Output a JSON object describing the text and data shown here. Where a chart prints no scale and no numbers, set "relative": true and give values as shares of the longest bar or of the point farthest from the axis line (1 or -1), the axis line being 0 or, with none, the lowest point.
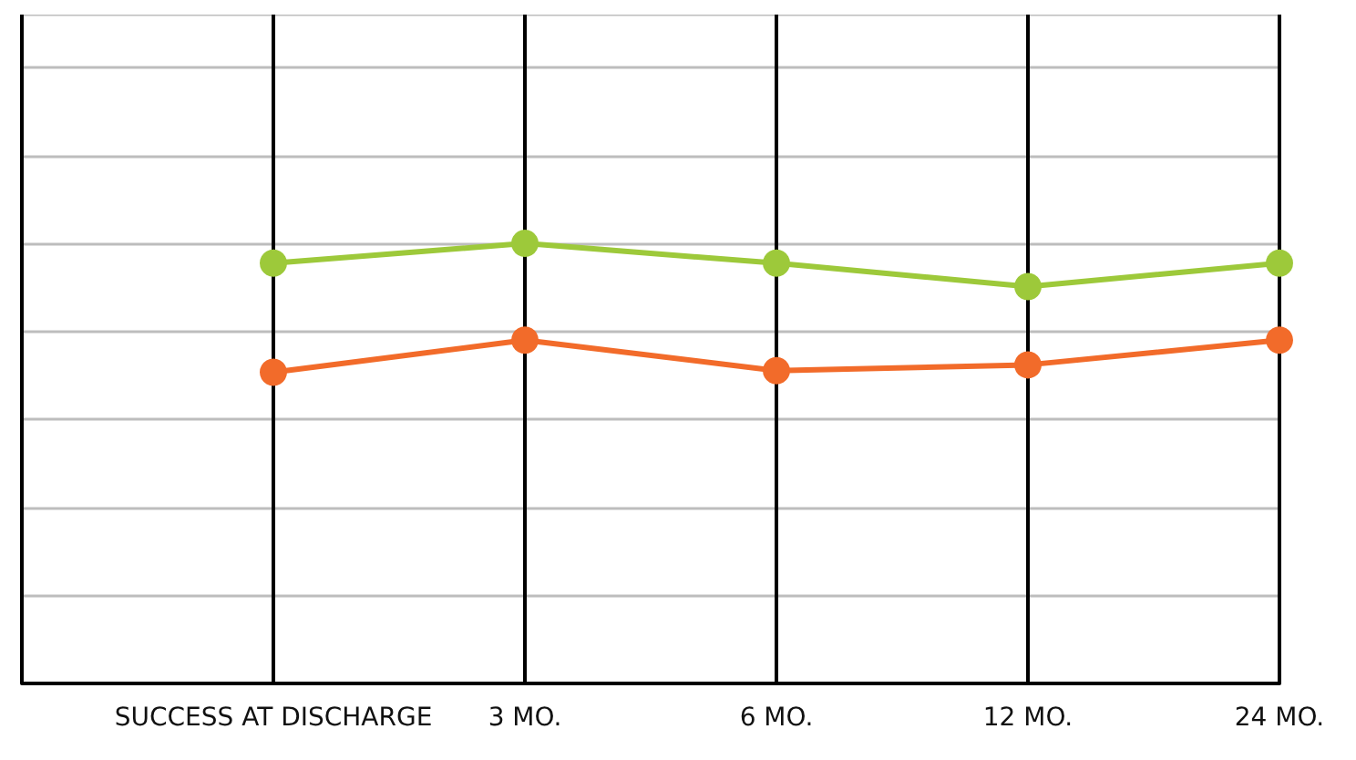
{
  "chart_data": {
    "type": "line",
    "relative": true,
    "categories": [
      null,
      "SUCCESS AT DISCHARGE",
      "3 MO.",
      "6 MO.",
      "12 MO.",
      "24 MO."
    ],
    "series": [
      {
        "color": "#9dc93a",
        "values": [
          null,
          0.955,
          1,
          0.955,
          0.902,
          0.955
        ]
      },
      {
        "color": "#f26b2a",
        "values": [
          null,
          0.707,
          0.78,
          0.711,
          0.724,
          0.78
        ]
      }
    ],
    "marker": "circle",
    "line_style": "solid",
    "grid": true
  }
}
